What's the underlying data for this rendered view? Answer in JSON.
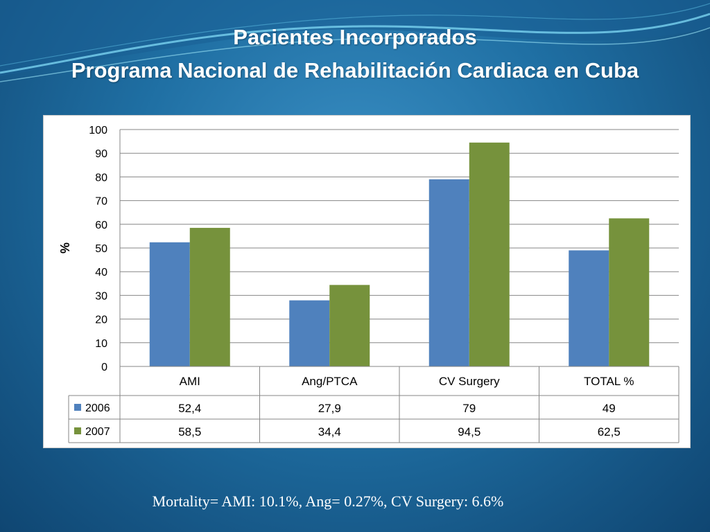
{
  "title_line1": "Pacientes Incorporados",
  "title_line2": "Programa Nacional de Rehabilitación Cardiaca en Cuba",
  "footnote": "Mortality= AMI: 10.1%, Ang= 0.27%, CV Surgery: 6.6%",
  "colors": {
    "s2006": "#4f81bd",
    "s2007": "#76923c"
  },
  "chart_data": {
    "type": "bar",
    "title": "",
    "xlabel": "",
    "ylabel": "%",
    "ylim": [
      0,
      100
    ],
    "yticks": [
      0,
      10,
      20,
      30,
      40,
      50,
      60,
      70,
      80,
      90,
      100
    ],
    "grid": true,
    "legend": "data-table",
    "categories": [
      "AMI",
      "Ang/PTCA",
      "CV Surgery",
      "TOTAL %"
    ],
    "series": [
      {
        "name": "2006",
        "values": [
          52.4,
          27.9,
          79,
          49
        ],
        "labels": [
          "52,4",
          "27,9",
          "79",
          "49"
        ]
      },
      {
        "name": "2007",
        "values": [
          58.5,
          34.4,
          94.5,
          62.5
        ],
        "labels": [
          "58,5",
          "34,4",
          "94,5",
          "62,5"
        ]
      }
    ]
  }
}
